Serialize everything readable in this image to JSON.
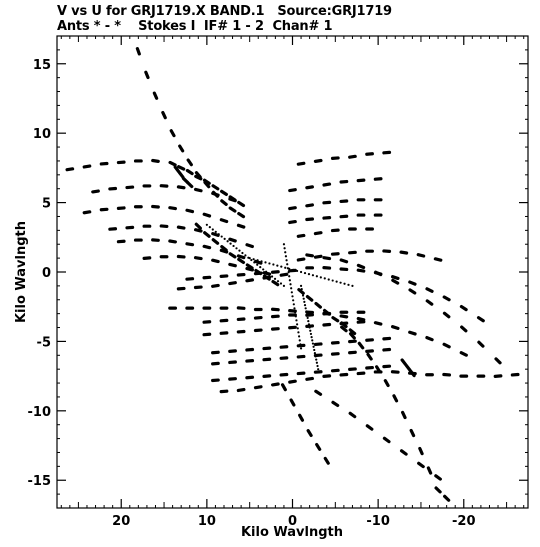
{
  "header": {
    "line1": "V vs U for GRJ1719.X BAND.1   Source:GRJ1719",
    "line2": "Ants * - *    Stokes I  IF# 1 - 2  Chan# 1"
  },
  "chart_data": {
    "type": "scatter",
    "title": "V vs U for GRJ1719.X BAND.1   Source:GRJ1719",
    "subtitle": "Ants * - *    Stokes I  IF# 1 - 2  Chan# 1",
    "xlabel": "Kilo Wavlngth",
    "ylabel": "Kilo Wavlngth",
    "xlim": [
      27.5,
      -27.5
    ],
    "ylim": [
      -17.0,
      17.0
    ],
    "x_inverted": true,
    "x_ticks": [
      20,
      10,
      0,
      -10,
      -20
    ],
    "x_tick_labels": [
      "20",
      "10",
      "0",
      "-10",
      "-20"
    ],
    "y_ticks": [
      15,
      10,
      5,
      0,
      -5,
      -10,
      -15
    ],
    "y_tick_labels": [
      "15",
      "10",
      "5",
      "0",
      "-5",
      "-10",
      "-15"
    ],
    "grid": false,
    "marker_color": "#000000",
    "uv_tracks": [
      {
        "u": [
          18,
          17,
          16,
          15,
          14,
          13,
          12,
          11,
          10,
          9,
          8,
          7,
          6
        ],
        "v": [
          15.9,
          14.2,
          12.7,
          11.3,
          10.0,
          8.9,
          7.9,
          7.0,
          6.3,
          5.6,
          5.0,
          4.5,
          4.1
        ]
      },
      {
        "u": [
          26,
          24,
          22,
          20,
          18,
          16,
          14,
          13,
          12,
          11,
          10,
          9,
          8,
          7,
          6
        ],
        "v": [
          7.4,
          7.6,
          7.8,
          7.9,
          8.0,
          8.0,
          7.8,
          7.5,
          7.2,
          6.8,
          6.5,
          6.1,
          5.7,
          5.3,
          4.9
        ]
      },
      {
        "u": [
          13.5,
          13,
          12.5,
          12
        ],
        "v": [
          7.4,
          7.0,
          6.6,
          6.3
        ]
      },
      {
        "u": [
          23,
          21,
          19,
          17,
          15,
          13,
          11,
          9,
          7
        ],
        "v": [
          5.8,
          6.0,
          6.1,
          6.2,
          6.2,
          6.1,
          5.9,
          5.6,
          5.2
        ]
      },
      {
        "u": [
          24,
          22,
          20,
          18,
          16,
          14,
          12,
          10,
          8,
          6
        ],
        "v": [
          4.3,
          4.5,
          4.6,
          4.7,
          4.7,
          4.6,
          4.4,
          4.1,
          3.7,
          3.3
        ]
      },
      {
        "u": [
          21,
          19,
          17,
          15,
          13,
          11,
          9,
          7,
          5
        ],
        "v": [
          3.1,
          3.2,
          3.3,
          3.3,
          3.2,
          3.0,
          2.7,
          2.3,
          1.9
        ]
      },
      {
        "u": [
          20,
          18,
          16,
          14,
          12,
          10,
          8,
          6,
          4
        ],
        "v": [
          2.2,
          2.3,
          2.3,
          2.2,
          2.0,
          1.8,
          1.5,
          1.1,
          0.7
        ]
      },
      {
        "u": [
          17,
          15,
          13,
          11,
          9,
          7,
          5,
          3
        ],
        "v": [
          1.0,
          1.1,
          1.1,
          1.0,
          0.8,
          0.5,
          0.2,
          -0.1
        ]
      },
      {
        "u": [
          12,
          10,
          8,
          6,
          4,
          2,
          0
        ],
        "v": [
          -0.5,
          -0.4,
          -0.3,
          -0.2,
          -0.1,
          0.0,
          0.1
        ]
      },
      {
        "u": [
          13,
          11,
          9,
          7,
          5,
          3,
          1
        ],
        "v": [
          -1.2,
          -1.1,
          -1.0,
          -0.8,
          -0.6,
          -0.4,
          -0.2
        ]
      },
      {
        "u": [
          -2,
          -4,
          -6,
          -8,
          -10,
          -12,
          -14,
          -16,
          -18,
          -20,
          -22
        ],
        "v": [
          0.3,
          0.3,
          0.2,
          0.1,
          -0.1,
          -0.4,
          -0.8,
          -1.3,
          -1.9,
          -2.6,
          -3.4
        ]
      },
      {
        "u": [
          -2,
          -4,
          -6,
          -8,
          -10,
          -12,
          -14,
          -16,
          -18,
          -20,
          -22,
          -24
        ],
        "v": [
          1.2,
          1.0,
          0.8,
          0.4,
          -0.1,
          -0.7,
          -1.4,
          -2.2,
          -3.1,
          -4.1,
          -5.2,
          -6.4
        ]
      },
      {
        "u": [
          -1,
          -3,
          -5,
          -7,
          -9,
          -11,
          -13,
          -15,
          -17
        ],
        "v": [
          0.9,
          1.1,
          1.3,
          1.4,
          1.5,
          1.5,
          1.4,
          1.2,
          0.9
        ]
      },
      {
        "u": [
          -1,
          -3,
          -5,
          -7,
          -9
        ],
        "v": [
          2.6,
          2.8,
          3.0,
          3.1,
          3.1
        ]
      },
      {
        "u": [
          0,
          -2,
          -4,
          -6,
          -8,
          -10
        ],
        "v": [
          3.6,
          3.8,
          3.9,
          4.0,
          4.1,
          4.1
        ]
      },
      {
        "u": [
          0,
          -2,
          -4,
          -6,
          -8,
          -10
        ],
        "v": [
          4.6,
          4.8,
          5.0,
          5.1,
          5.2,
          5.2
        ]
      },
      {
        "u": [
          0,
          -2,
          -4,
          -6,
          -8,
          -10
        ],
        "v": [
          5.9,
          6.1,
          6.3,
          6.5,
          6.6,
          6.7
        ]
      },
      {
        "u": [
          -1,
          -3,
          -5,
          -7,
          -9,
          -11
        ],
        "v": [
          7.8,
          8.0,
          8.2,
          8.3,
          8.5,
          8.6
        ]
      },
      {
        "u": [
          14,
          12,
          10,
          8,
          6,
          4,
          2,
          0,
          -2,
          -4,
          -6,
          -8,
          -10,
          -12,
          -14,
          -16,
          -18,
          -20
        ],
        "v": [
          -2.6,
          -2.6,
          -2.6,
          -2.6,
          -2.6,
          -2.7,
          -2.7,
          -2.8,
          -2.9,
          -3.0,
          -3.2,
          -3.4,
          -3.7,
          -4.0,
          -4.4,
          -4.8,
          -5.3,
          -5.9
        ]
      },
      {
        "u": [
          10,
          8,
          6,
          4,
          2,
          0,
          -2,
          -4,
          -6,
          -8
        ],
        "v": [
          -3.6,
          -3.5,
          -3.4,
          -3.3,
          -3.2,
          -3.1,
          -3.1,
          -3.0,
          -2.9,
          -2.9
        ]
      },
      {
        "u": [
          10,
          8,
          6,
          4,
          2,
          0,
          -2,
          -4,
          -6,
          -8
        ],
        "v": [
          -4.5,
          -4.4,
          -4.3,
          -4.2,
          -4.1,
          -4.0,
          -3.9,
          -3.8,
          -3.7,
          -3.6
        ]
      },
      {
        "u": [
          9,
          7,
          5,
          3,
          1,
          -1,
          -3,
          -5,
          -7,
          -9,
          -11
        ],
        "v": [
          -5.8,
          -5.7,
          -5.6,
          -5.5,
          -5.4,
          -5.3,
          -5.2,
          -5.1,
          -5.0,
          -4.9,
          -4.8
        ]
      },
      {
        "u": [
          9,
          7,
          5,
          3,
          1,
          -1,
          -3,
          -5,
          -7,
          -9,
          -11
        ],
        "v": [
          -6.6,
          -6.5,
          -6.4,
          -6.3,
          -6.2,
          -6.1,
          -6.0,
          -5.9,
          -5.8,
          -5.7,
          -5.6
        ]
      },
      {
        "u": [
          9,
          7,
          5,
          3,
          1,
          -1,
          -3,
          -5,
          -7,
          -9,
          -11
        ],
        "v": [
          -7.8,
          -7.7,
          -7.6,
          -7.5,
          -7.4,
          -7.3,
          -7.2,
          -7.1,
          -7.0,
          -6.9,
          -6.8
        ]
      },
      {
        "u": [
          8,
          6,
          4,
          2,
          0,
          -2,
          -4,
          -6,
          -8,
          -10,
          -12,
          -14,
          -16,
          -18,
          -20,
          -22,
          -24,
          -26
        ],
        "v": [
          -8.6,
          -8.5,
          -8.3,
          -8.1,
          -7.9,
          -7.7,
          -7.5,
          -7.4,
          -7.3,
          -7.2,
          -7.2,
          -7.3,
          -7.4,
          -7.4,
          -7.5,
          -7.5,
          -7.5,
          -7.4
        ]
      },
      {
        "u": [
          -13.0,
          -13.5,
          -14.0
        ],
        "v": [
          -6.5,
          -6.9,
          -7.3
        ]
      },
      {
        "u": [
          -6,
          -7,
          -8,
          -9,
          -10,
          -11,
          -12,
          -13,
          -14,
          -15,
          -16,
          -17,
          -18
        ],
        "v": [
          -4.1,
          -4.6,
          -5.3,
          -6.1,
          -7.0,
          -8.0,
          -9.1,
          -10.3,
          -11.6,
          -12.9,
          -14.3,
          -15.7,
          -16.3
        ]
      },
      {
        "u": [
          -3,
          -5,
          -7,
          -9,
          -11,
          -13,
          -15,
          -17
        ],
        "v": [
          -8.7,
          -9.5,
          -10.3,
          -11.2,
          -12.1,
          -13.0,
          -13.9,
          -14.8
        ]
      },
      {
        "u": [
          1,
          0,
          -1,
          -2,
          -3,
          -4
        ],
        "v": [
          -8.3,
          -9.4,
          -10.5,
          -11.6,
          -12.6,
          -13.6
        ]
      },
      {
        "u": [
          11,
          10,
          9,
          8,
          7,
          6,
          5,
          4,
          3,
          2
        ],
        "v": [
          3.3,
          2.7,
          2.2,
          1.7,
          1.2,
          0.8,
          0.4,
          0.0,
          -0.4,
          -0.8
        ]
      },
      {
        "u": [
          -1,
          -2,
          -3,
          -4,
          -5,
          -6,
          -7
        ],
        "v": [
          -1.4,
          -1.9,
          -2.4,
          -2.9,
          -3.4,
          -3.8,
          -4.3
        ]
      }
    ],
    "uv_dotted_lines": [
      {
        "u0": 10,
        "v0": 3.4,
        "u1": 1,
        "v1": -1.0
      },
      {
        "u0": 1,
        "v0": 2.0,
        "u1": -1,
        "v1": -5.5
      },
      {
        "u0": -1,
        "v0": -1.0,
        "u1": -3,
        "v1": -7.0
      },
      {
        "u0": 5,
        "v0": 1.0,
        "u1": -7,
        "v1": -1.0
      }
    ]
  }
}
